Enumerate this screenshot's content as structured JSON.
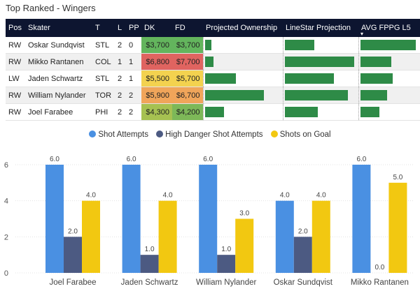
{
  "title": "Top Ranked - Wingers",
  "table": {
    "headers": [
      "Pos",
      "Skater",
      "T",
      "L",
      "PP",
      "DK",
      "FD",
      "Projected Ownership",
      "LineStar Projection",
      "AVG FPPG L5"
    ],
    "sort_indicator": "▾",
    "rows": [
      {
        "pos": "RW",
        "skater": "Oskar Sundqvist",
        "team": "STL",
        "line": "2",
        "pp": "0",
        "dk": "$3,700",
        "fd": "$3,700",
        "dk_color": "#63b55d",
        "fd_color": "#63b55d",
        "own": 0.09,
        "proj": 0.43,
        "fppg": 1.0
      },
      {
        "pos": "RW",
        "skater": "Mikko Rantanen",
        "team": "COL",
        "line": "1",
        "pp": "1",
        "dk": "$6,800",
        "fd": "$7,700",
        "dk_color": "#e06460",
        "fd_color": "#e06460",
        "own": 0.12,
        "proj": 1.0,
        "fppg": 0.56
      },
      {
        "pos": "LW",
        "skater": "Jaden Schwartz",
        "team": "STL",
        "line": "2",
        "pp": "1",
        "dk": "$5,500",
        "fd": "$5,700",
        "dk_color": "#f3d24f",
        "fd_color": "#f3d24f",
        "own": 0.42,
        "proj": 0.71,
        "fppg": 0.58
      },
      {
        "pos": "RW",
        "skater": "William Nylander",
        "team": "TOR",
        "line": "2",
        "pp": "2",
        "dk": "$5,900",
        "fd": "$6,700",
        "dk_color": "#f0a55a",
        "fd_color": "#f0a55a",
        "own": 0.8,
        "proj": 0.91,
        "fppg": 0.48
      },
      {
        "pos": "RW",
        "skater": "Joel Farabee",
        "team": "PHI",
        "line": "2",
        "pp": "2",
        "dk": "$4,300",
        "fd": "$4,200",
        "dk_color": "#a6c151",
        "fd_color": "#7db858",
        "own": 0.26,
        "proj": 0.48,
        "fppg": 0.34
      }
    ]
  },
  "legend": [
    {
      "label": "Shot Attempts",
      "color": "#4a90e2"
    },
    {
      "label": "High Danger Shot Attempts",
      "color": "#4c5a82"
    },
    {
      "label": "Shots on Goal",
      "color": "#f2c811"
    }
  ],
  "chart_data": {
    "type": "bar",
    "categories": [
      "Joel Farabee",
      "Jaden Schwartz",
      "William Nylander",
      "Oskar Sundqvist",
      "Mikko Rantanen"
    ],
    "series": [
      {
        "name": "Shot Attempts",
        "color": "#4a90e2",
        "values": [
          6.0,
          6.0,
          6.0,
          4.0,
          6.0
        ],
        "labels": [
          "6.0",
          "6.0",
          "6.0",
          "4.0",
          "6.0"
        ]
      },
      {
        "name": "High Danger Shot Attempts",
        "color": "#4c5a82",
        "values": [
          2.0,
          1.0,
          1.0,
          2.0,
          0.0
        ],
        "labels": [
          "2.0",
          "1.0",
          "1.0",
          "2.0",
          "0.0"
        ]
      },
      {
        "name": "Shots on Goal",
        "color": "#f2c811",
        "values": [
          4.0,
          4.0,
          3.0,
          4.0,
          5.0
        ],
        "labels": [
          "4.0",
          "4.0",
          "3.0",
          "4.0",
          "5.0"
        ]
      }
    ],
    "yticks": [
      "0",
      "2",
      "4",
      "6"
    ],
    "ylim": [
      0,
      6
    ],
    "grid": true,
    "legend_position": "top-center"
  }
}
